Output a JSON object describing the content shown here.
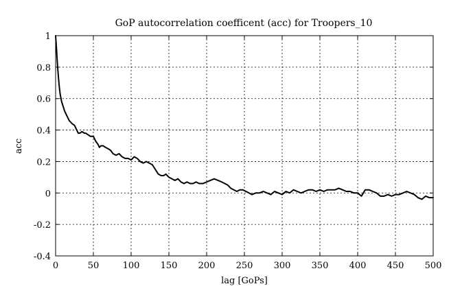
{
  "chart_data": {
    "type": "line",
    "title": "GoP autocorrelation coefficent (acc) for Troopers_10",
    "xlabel": "lag [GoPs]",
    "ylabel": "acc",
    "xlim": [
      0,
      500
    ],
    "ylim": [
      -0.4,
      1
    ],
    "grid": true,
    "x_ticks": [
      0,
      50,
      100,
      150,
      200,
      250,
      300,
      350,
      400,
      450,
      500
    ],
    "y_ticks": [
      -0.4,
      -0.2,
      0,
      0.2,
      0.4,
      0.6,
      0.8,
      1
    ],
    "x_tick_labels": [
      "0",
      "50",
      "100",
      "150",
      "200",
      "250",
      "300",
      "350",
      "400",
      "450",
      "500"
    ],
    "y_tick_labels": [
      "-0.4",
      "-0.2",
      "0",
      "0.2",
      "0.4",
      "0.6",
      "0.8",
      "1"
    ],
    "series": [
      {
        "name": "acc",
        "x": [
          0,
          1,
          2,
          3,
          4,
          5,
          6,
          8,
          10,
          12,
          14,
          16,
          18,
          20,
          22,
          25,
          28,
          30,
          32,
          35,
          38,
          40,
          43,
          46,
          50,
          53,
          56,
          58,
          60,
          63,
          66,
          70,
          73,
          76,
          80,
          84,
          88,
          92,
          96,
          100,
          104,
          108,
          112,
          116,
          120,
          124,
          128,
          132,
          136,
          140,
          143,
          146,
          150,
          154,
          158,
          162,
          166,
          170,
          174,
          178,
          182,
          186,
          190,
          195,
          200,
          205,
          210,
          215,
          220,
          224,
          228,
          232,
          236,
          240,
          244,
          248,
          252,
          256,
          260,
          265,
          270,
          275,
          280,
          285,
          290,
          295,
          300,
          305,
          310,
          315,
          320,
          325,
          330,
          335,
          340,
          345,
          350,
          355,
          360,
          365,
          370,
          375,
          380,
          385,
          390,
          395,
          400,
          405,
          410,
          415,
          420,
          425,
          430,
          435,
          440,
          445,
          450,
          455,
          460,
          465,
          470,
          475,
          480,
          485,
          490,
          495,
          500
        ],
        "y": [
          1.0,
          0.93,
          0.85,
          0.78,
          0.72,
          0.67,
          0.63,
          0.58,
          0.55,
          0.52,
          0.5,
          0.48,
          0.46,
          0.45,
          0.44,
          0.43,
          0.4,
          0.38,
          0.38,
          0.39,
          0.38,
          0.38,
          0.37,
          0.36,
          0.36,
          0.33,
          0.31,
          0.29,
          0.3,
          0.3,
          0.29,
          0.28,
          0.27,
          0.25,
          0.24,
          0.25,
          0.23,
          0.22,
          0.22,
          0.21,
          0.23,
          0.22,
          0.2,
          0.19,
          0.2,
          0.19,
          0.18,
          0.15,
          0.12,
          0.11,
          0.11,
          0.12,
          0.1,
          0.09,
          0.08,
          0.09,
          0.07,
          0.06,
          0.07,
          0.06,
          0.06,
          0.07,
          0.06,
          0.06,
          0.07,
          0.08,
          0.09,
          0.08,
          0.07,
          0.06,
          0.05,
          0.03,
          0.02,
          0.01,
          0.02,
          0.02,
          0.01,
          0.0,
          -0.01,
          0.0,
          0.0,
          0.01,
          0.0,
          -0.01,
          0.01,
          0.0,
          -0.01,
          0.01,
          0.0,
          0.02,
          0.01,
          0.0,
          0.01,
          0.02,
          0.02,
          0.01,
          0.02,
          0.01,
          0.02,
          0.02,
          0.02,
          0.03,
          0.02,
          0.01,
          0.01,
          0.0,
          0.0,
          -0.02,
          0.02,
          0.02,
          0.01,
          0.0,
          -0.02,
          -0.02,
          -0.01,
          -0.02,
          -0.01,
          -0.01,
          0.0,
          0.01,
          0.0,
          -0.01,
          -0.03,
          -0.04,
          -0.02,
          -0.03,
          -0.03
        ]
      }
    ]
  }
}
